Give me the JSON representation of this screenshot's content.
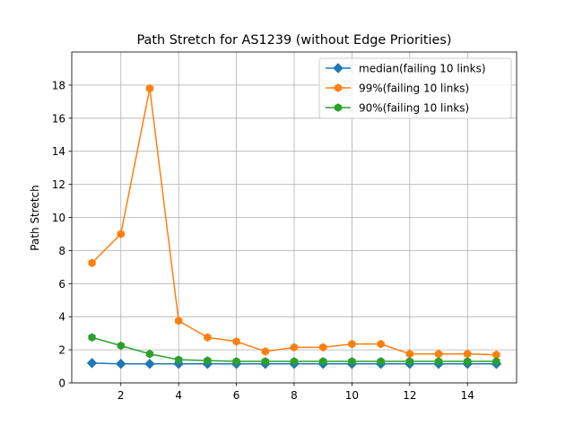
{
  "chart_data": {
    "type": "line",
    "title": "Path Stretch for AS1239 (without Edge Priorities)",
    "xlabel": "",
    "ylabel": "Path Stretch",
    "xlim": [
      0.3,
      15.7
    ],
    "ylim": [
      0,
      20
    ],
    "xticks": [
      2,
      4,
      6,
      8,
      10,
      12,
      14
    ],
    "yticks": [
      0,
      2,
      4,
      6,
      8,
      10,
      12,
      14,
      16,
      18
    ],
    "grid": true,
    "legend_position": "top-right",
    "x": [
      1,
      2,
      3,
      4,
      5,
      6,
      7,
      8,
      9,
      10,
      11,
      12,
      13,
      14,
      15
    ],
    "series": [
      {
        "name": "median(failing 10 links)",
        "color": "#1f77b4",
        "marker": "diamond",
        "values": [
          1.2,
          1.15,
          1.15,
          1.15,
          1.15,
          1.15,
          1.15,
          1.15,
          1.15,
          1.15,
          1.15,
          1.15,
          1.15,
          1.15,
          1.15
        ]
      },
      {
        "name": "99%(failing 10 links)",
        "color": "#ff7f0e",
        "marker": "hexagon",
        "values": [
          7.25,
          9.0,
          17.8,
          3.75,
          2.75,
          2.5,
          1.9,
          2.15,
          2.15,
          2.35,
          2.35,
          1.75,
          1.75,
          1.75,
          1.7
        ]
      },
      {
        "name": "90%(failing 10 links)",
        "color": "#2ca02c",
        "marker": "hexagon",
        "values": [
          2.75,
          2.25,
          1.75,
          1.4,
          1.35,
          1.3,
          1.3,
          1.3,
          1.3,
          1.3,
          1.3,
          1.3,
          1.3,
          1.3,
          1.3
        ]
      }
    ]
  }
}
